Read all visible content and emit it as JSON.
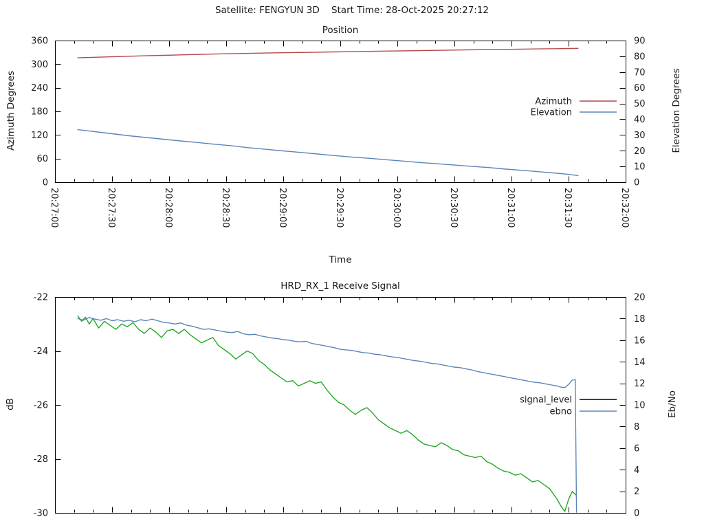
{
  "header": {
    "title": "Satellite: FENGYUN 3D    Start Time: 28-Oct-2025 20:27:12"
  },
  "chart_data": [
    {
      "type": "line",
      "title": "Position",
      "xlabel": "Time",
      "ylabel_left": "Azimuth Degrees",
      "ylabel_right": "Elevation Degrees",
      "x_range_seconds": [
        0,
        300
      ],
      "x_major_seconds": 30,
      "x_minor_divisions": 3,
      "x_tick_labels_visible": true,
      "x_tick_labels": [
        "20:27:00",
        "20:27:30",
        "20:28:00",
        "20:28:30",
        "20:29:00",
        "20:29:30",
        "20:30:00",
        "20:30:30",
        "20:31:00",
        "20:31:30",
        "20:32:00"
      ],
      "y_left": {
        "min": 0,
        "max": 360,
        "step": 60,
        "labels": [
          "0",
          "60",
          "120",
          "180",
          "240",
          "300",
          "360"
        ]
      },
      "y_right": {
        "min": 0,
        "max": 90,
        "step": 10,
        "labels": [
          "0",
          "10",
          "20",
          "30",
          "40",
          "50",
          "60",
          "70",
          "80",
          "90"
        ]
      },
      "legend_position": "right-middle",
      "grid": false,
      "series": [
        {
          "name": "Azimuth",
          "axis": "left",
          "color": "#b24a4a",
          "key_color": "#b24a4a",
          "points": [
            [
              12,
              316.2
            ],
            [
              21,
              317.5
            ],
            [
              30,
              318.8
            ],
            [
              39,
              320.1
            ],
            [
              48,
              321.4
            ],
            [
              57,
              322.5
            ],
            [
              66,
              323.6
            ],
            [
              75,
              324.7
            ],
            [
              84,
              325.7
            ],
            [
              93,
              326.6
            ],
            [
              102,
              327.5
            ],
            [
              111,
              328.3
            ],
            [
              120,
              329.1
            ],
            [
              129,
              329.8
            ],
            [
              138,
              330.5
            ],
            [
              147,
              331.1
            ],
            [
              156,
              331.8
            ],
            [
              165,
              332.5
            ],
            [
              174,
              333.2
            ],
            [
              183,
              333.8
            ],
            [
              192,
              334.5
            ],
            [
              201,
              335.2
            ],
            [
              210,
              335.8
            ],
            [
              219,
              336.5
            ],
            [
              228,
              337.1
            ],
            [
              237,
              337.7
            ],
            [
              246,
              338.2
            ],
            [
              255,
              338.8
            ],
            [
              264,
              339.4
            ],
            [
              270,
              339.9
            ],
            [
              275,
              340.3
            ]
          ]
        },
        {
          "name": "Elevation",
          "axis": "right",
          "color": "#5b85b7",
          "key_color": "#5b85b7",
          "points": [
            [
              12,
              33.4
            ],
            [
              21,
              32.1
            ],
            [
              30,
              30.8
            ],
            [
              39,
              29.5
            ],
            [
              48,
              28.4
            ],
            [
              57,
              27.3
            ],
            [
              66,
              26.2
            ],
            [
              75,
              25.2
            ],
            [
              84,
              24.1
            ],
            [
              93,
              23.1
            ],
            [
              102,
              21.9
            ],
            [
              111,
              20.9
            ],
            [
              120,
              19.9
            ],
            [
              129,
              18.9
            ],
            [
              138,
              17.9
            ],
            [
              147,
              16.9
            ],
            [
              156,
              16.0
            ],
            [
              165,
              15.2
            ],
            [
              174,
              14.3
            ],
            [
              183,
              13.4
            ],
            [
              192,
              12.5
            ],
            [
              201,
              11.7
            ],
            [
              210,
              10.9
            ],
            [
              219,
              10.1
            ],
            [
              228,
              9.3
            ],
            [
              237,
              8.3
            ],
            [
              246,
              7.5
            ],
            [
              255,
              6.6
            ],
            [
              264,
              5.7
            ],
            [
              270,
              5.0
            ],
            [
              275,
              4.2
            ]
          ]
        }
      ]
    },
    {
      "type": "line",
      "title": "HRD_RX_1 Receive Signal",
      "xlabel": "",
      "ylabel_left": "dB",
      "ylabel_right": "Eb/No",
      "x_range_seconds": [
        0,
        300
      ],
      "x_major_seconds": 30,
      "x_minor_divisions": 3,
      "x_tick_labels_visible": false,
      "x_tick_labels": [],
      "y_left": {
        "min": -30,
        "max": -22,
        "step": 2,
        "labels": [
          "-30",
          "-28",
          "-26",
          "-24",
          "-22"
        ]
      },
      "y_right": {
        "min": 0,
        "max": 20,
        "step": 2,
        "labels": [
          "0",
          "2",
          "4",
          "6",
          "8",
          "10",
          "12",
          "14",
          "16",
          "18",
          "20"
        ]
      },
      "legend_position": "right-middle",
      "grid": false,
      "series": [
        {
          "name": "signal_level",
          "axis": "left",
          "color": "#22a822",
          "key_color": "#000000",
          "points": [
            [
              12,
              -22.7
            ],
            [
              14,
              -22.9
            ],
            [
              16,
              -22.75
            ],
            [
              18,
              -23.0
            ],
            [
              20,
              -22.8
            ],
            [
              23,
              -23.15
            ],
            [
              26,
              -22.9
            ],
            [
              29,
              -23.05
            ],
            [
              32,
              -23.2
            ],
            [
              35,
              -23.0
            ],
            [
              38,
              -23.1
            ],
            [
              41,
              -22.95
            ],
            [
              44,
              -23.2
            ],
            [
              47,
              -23.35
            ],
            [
              50,
              -23.15
            ],
            [
              53,
              -23.3
            ],
            [
              56,
              -23.5
            ],
            [
              59,
              -23.25
            ],
            [
              62,
              -23.2
            ],
            [
              65,
              -23.35
            ],
            [
              68,
              -23.2
            ],
            [
              71,
              -23.4
            ],
            [
              74,
              -23.55
            ],
            [
              77,
              -23.7
            ],
            [
              80,
              -23.6
            ],
            [
              83,
              -23.5
            ],
            [
              86,
              -23.8
            ],
            [
              89,
              -23.95
            ],
            [
              92,
              -24.1
            ],
            [
              95,
              -24.3
            ],
            [
              98,
              -24.15
            ],
            [
              101,
              -24.0
            ],
            [
              104,
              -24.1
            ],
            [
              107,
              -24.35
            ],
            [
              110,
              -24.5
            ],
            [
              113,
              -24.7
            ],
            [
              116,
              -24.85
            ],
            [
              119,
              -25.0
            ],
            [
              122,
              -25.15
            ],
            [
              125,
              -25.1
            ],
            [
              128,
              -25.3
            ],
            [
              131,
              -25.2
            ],
            [
              134,
              -25.1
            ],
            [
              137,
              -25.2
            ],
            [
              140,
              -25.15
            ],
            [
              143,
              -25.45
            ],
            [
              146,
              -25.7
            ],
            [
              149,
              -25.9
            ],
            [
              152,
              -26.0
            ],
            [
              155,
              -26.2
            ],
            [
              158,
              -26.35
            ],
            [
              161,
              -26.2
            ],
            [
              164,
              -26.1
            ],
            [
              167,
              -26.3
            ],
            [
              170,
              -26.55
            ],
            [
              173,
              -26.7
            ],
            [
              176,
              -26.85
            ],
            [
              179,
              -26.95
            ],
            [
              182,
              -27.05
            ],
            [
              185,
              -26.95
            ],
            [
              188,
              -27.1
            ],
            [
              191,
              -27.3
            ],
            [
              194,
              -27.45
            ],
            [
              197,
              -27.5
            ],
            [
              200,
              -27.55
            ],
            [
              203,
              -27.4
            ],
            [
              206,
              -27.5
            ],
            [
              209,
              -27.65
            ],
            [
              212,
              -27.7
            ],
            [
              215,
              -27.85
            ],
            [
              218,
              -27.9
            ],
            [
              221,
              -27.95
            ],
            [
              224,
              -27.9
            ],
            [
              227,
              -28.1
            ],
            [
              230,
              -28.2
            ],
            [
              233,
              -28.35
            ],
            [
              236,
              -28.45
            ],
            [
              239,
              -28.5
            ],
            [
              242,
              -28.6
            ],
            [
              245,
              -28.55
            ],
            [
              248,
              -28.7
            ],
            [
              251,
              -28.85
            ],
            [
              254,
              -28.8
            ],
            [
              257,
              -28.95
            ],
            [
              260,
              -29.1
            ],
            [
              262,
              -29.3
            ],
            [
              264,
              -29.5
            ],
            [
              266,
              -29.75
            ],
            [
              268,
              -29.95
            ],
            [
              270,
              -29.5
            ],
            [
              272,
              -29.2
            ],
            [
              274,
              -29.35
            ]
          ]
        },
        {
          "name": "ebno",
          "axis": "right",
          "color": "#5b85b7",
          "key_color": "#5b85b7",
          "points": [
            [
              12,
              18.0
            ],
            [
              15,
              17.85
            ],
            [
              18,
              18.1
            ],
            [
              21,
              17.95
            ],
            [
              24,
              17.85
            ],
            [
              27,
              18.0
            ],
            [
              30,
              17.8
            ],
            [
              33,
              17.9
            ],
            [
              36,
              17.75
            ],
            [
              39,
              17.85
            ],
            [
              42,
              17.7
            ],
            [
              45,
              17.9
            ],
            [
              48,
              17.8
            ],
            [
              51,
              17.95
            ],
            [
              54,
              17.8
            ],
            [
              57,
              17.65
            ],
            [
              60,
              17.6
            ],
            [
              63,
              17.5
            ],
            [
              66,
              17.6
            ],
            [
              69,
              17.4
            ],
            [
              72,
              17.3
            ],
            [
              75,
              17.15
            ],
            [
              78,
              17.0
            ],
            [
              81,
              17.05
            ],
            [
              84,
              16.95
            ],
            [
              87,
              16.85
            ],
            [
              90,
              16.75
            ],
            [
              93,
              16.7
            ],
            [
              96,
              16.8
            ],
            [
              99,
              16.6
            ],
            [
              102,
              16.5
            ],
            [
              105,
              16.55
            ],
            [
              108,
              16.4
            ],
            [
              111,
              16.3
            ],
            [
              114,
              16.2
            ],
            [
              117,
              16.15
            ],
            [
              120,
              16.05
            ],
            [
              123,
              16.0
            ],
            [
              126,
              15.9
            ],
            [
              129,
              15.85
            ],
            [
              132,
              15.9
            ],
            [
              135,
              15.7
            ],
            [
              138,
              15.6
            ],
            [
              141,
              15.5
            ],
            [
              144,
              15.4
            ],
            [
              147,
              15.3
            ],
            [
              150,
              15.15
            ],
            [
              153,
              15.1
            ],
            [
              156,
              15.05
            ],
            [
              159,
              14.95
            ],
            [
              162,
              14.85
            ],
            [
              165,
              14.8
            ],
            [
              168,
              14.7
            ],
            [
              171,
              14.65
            ],
            [
              174,
              14.55
            ],
            [
              177,
              14.45
            ],
            [
              180,
              14.4
            ],
            [
              183,
              14.3
            ],
            [
              186,
              14.2
            ],
            [
              189,
              14.1
            ],
            [
              192,
              14.05
            ],
            [
              195,
              13.95
            ],
            [
              198,
              13.85
            ],
            [
              201,
              13.8
            ],
            [
              204,
              13.7
            ],
            [
              207,
              13.6
            ],
            [
              210,
              13.5
            ],
            [
              213,
              13.45
            ],
            [
              216,
              13.35
            ],
            [
              219,
              13.25
            ],
            [
              222,
              13.1
            ],
            [
              225,
              13.0
            ],
            [
              228,
              12.9
            ],
            [
              231,
              12.8
            ],
            [
              234,
              12.7
            ],
            [
              237,
              12.6
            ],
            [
              240,
              12.5
            ],
            [
              243,
              12.4
            ],
            [
              246,
              12.3
            ],
            [
              249,
              12.2
            ],
            [
              252,
              12.1
            ],
            [
              255,
              12.05
            ],
            [
              258,
              11.95
            ],
            [
              261,
              11.85
            ],
            [
              264,
              11.75
            ],
            [
              266,
              11.65
            ],
            [
              268,
              11.6
            ],
            [
              270,
              11.9
            ],
            [
              272,
              12.3
            ],
            [
              273.5,
              12.35
            ],
            [
              274.2,
              0.05
            ]
          ]
        }
      ]
    }
  ]
}
